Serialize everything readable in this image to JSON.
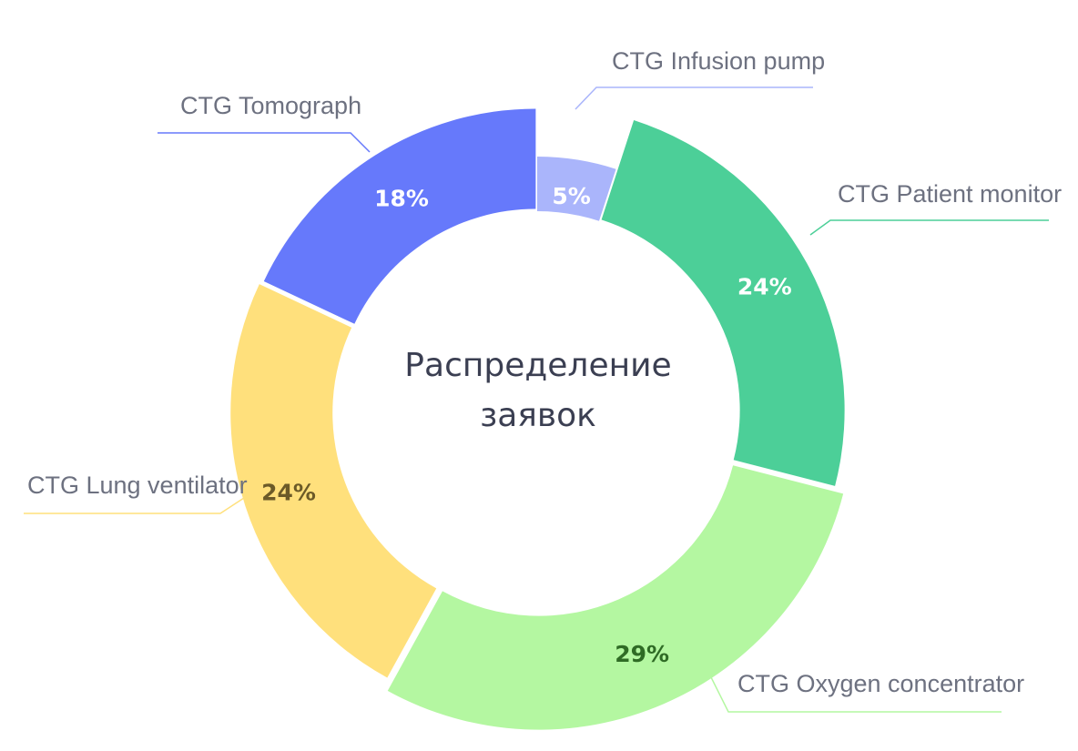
{
  "chart_data": {
    "type": "pie",
    "variant": "donut",
    "title_lines": [
      "Распределение",
      "заявок"
    ],
    "slices": [
      {
        "name": "CTG Infusion pump",
        "value": 5,
        "label": "5%",
        "color": "#aab5fb",
        "label_color": "#ffffff",
        "leader_color": "#aab5fb"
      },
      {
        "name": "CTG Patient monitor",
        "value": 24,
        "label": "24%",
        "color": "#4ccf98",
        "label_color": "#ffffff",
        "leader_color": "#4ccf98"
      },
      {
        "name": "CTG Oxygen concentrator",
        "value": 29,
        "label": "29%",
        "color": "#b4f7a1",
        "label_color": "#2f6b25",
        "leader_color": "#b4f7a1"
      },
      {
        "name": "CTG Lung ventilator",
        "value": 24,
        "label": "24%",
        "color": "#ffe07c",
        "label_color": "#6b5a28",
        "leader_color": "#ffe07c"
      },
      {
        "name": "CTG Tomograph",
        "value": 18,
        "label": "18%",
        "color": "#6679fb",
        "label_color": "#ffffff",
        "leader_color": "#6679fb"
      }
    ],
    "legend": "callouts"
  }
}
